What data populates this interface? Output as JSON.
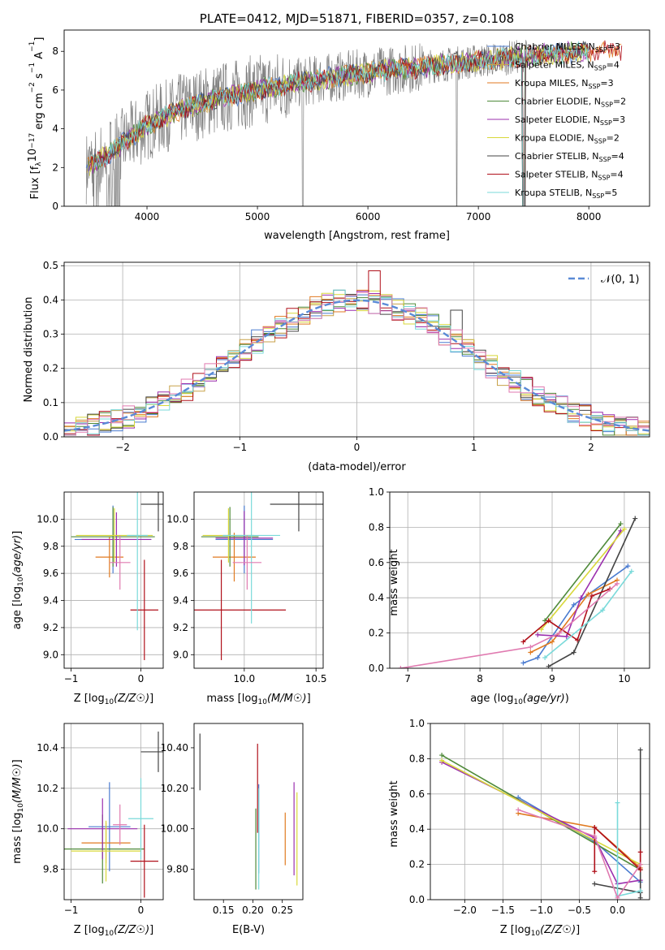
{
  "chart_data": [
    {
      "type": "line",
      "title": "PLATE=0412, MJD=51871, FIBERID=0357, z=0.108",
      "xlabel": "wavelength [Angstrom, rest frame]",
      "ylabel": "Flux [f$_\\lambda$10$^{-17}$ erg cm$^{-2}$ s$^{-1}$ A$^{-1}$]",
      "ylabel_parts": {
        "a": "Flux [f",
        "b": "λ",
        "c": "10",
        "d": "−17",
        "e": " erg cm",
        "f": "−2",
        "g": " s",
        "h": "−1",
        "i": " A",
        "j": "−1",
        "k": "]"
      },
      "xlim": [
        3250,
        8550
      ],
      "ylim": [
        0,
        9.1
      ],
      "xticks": [
        4000,
        5000,
        6000,
        7000,
        8000
      ],
      "yticks": [
        0,
        2,
        4,
        6,
        8
      ],
      "grid": false,
      "legend_position": "right",
      "observed_color": "#808080",
      "continuum_x": [
        3450,
        3600,
        3800,
        4000,
        4300,
        4600,
        5000,
        5500,
        6000,
        6500,
        7000,
        7500,
        8000,
        8300
      ],
      "continuum_y": [
        2.0,
        2.5,
        3.3,
        4.2,
        5.0,
        5.5,
        6.0,
        6.5,
        6.9,
        7.2,
        7.5,
        7.8,
        8.0,
        8.1
      ],
      "series": [
        {
          "label": "Chabrier MILES, N",
          "sub": "SSP",
          "suffix": "=3",
          "color": "#4a7bd0"
        },
        {
          "label": "Salpeter MILES, N",
          "sub": "SSP",
          "suffix": "=4",
          "color": "#c8a24a"
        },
        {
          "label": "Kroupa MILES, N",
          "sub": "SSP",
          "suffix": "=3",
          "color": "#e07a20"
        },
        {
          "label": "Chabrier ELODIE, N",
          "sub": "SSP",
          "suffix": "=2",
          "color": "#4f8a3a"
        },
        {
          "label": "Salpeter ELODIE, N",
          "sub": "SSP",
          "suffix": "=3",
          "color": "#9b2fae"
        },
        {
          "label": "Kroupa ELODIE, N",
          "sub": "SSP",
          "suffix": "=2",
          "color": "#d8d83a"
        },
        {
          "label": "Chabrier STELIB, N",
          "sub": "SSP",
          "suffix": "=4",
          "color": "#444444"
        },
        {
          "label": "Salpeter STELIB, N",
          "sub": "SSP",
          "suffix": "=4",
          "color": "#b0101a"
        },
        {
          "label": "Kroupa STELIB, N",
          "sub": "SSP",
          "suffix": "=5",
          "color": "#7adada"
        }
      ]
    },
    {
      "type": "bar",
      "xlabel": "(data-model)/error",
      "ylabel": "Normed distribution",
      "xlim": [
        -2.5,
        2.5
      ],
      "ylim": [
        0,
        0.51
      ],
      "xticks": [
        -2,
        -1,
        0,
        1,
        2
      ],
      "yticks": [
        0.0,
        0.1,
        0.2,
        0.3,
        0.4,
        0.5
      ],
      "grid": true,
      "legend_label": "𝒩(0, 1)",
      "legend_position": "top-right",
      "gauss_color": "#5a8ad6",
      "bin_width": 0.1,
      "bin_start": -2.5,
      "histogram_colors": [
        "#4a7bd0",
        "#c8a24a",
        "#e07a20",
        "#4f8a3a",
        "#9b2fae",
        "#d8d83a",
        "#444444",
        "#b0101a",
        "#7adada",
        "#e07ab0"
      ]
    },
    {
      "type": "scatter",
      "xlabel": "Z [log10(Z/Z☉)]",
      "ylabel": "age  [log10(age/yr)]",
      "xlim": [
        -1.1,
        0.32
      ],
      "ylim": [
        8.9,
        10.2
      ],
      "xticks": [
        -1,
        0
      ],
      "yticks": [
        9.0,
        9.2,
        9.4,
        9.6,
        9.8,
        10.0
      ],
      "grid": true,
      "points": [
        {
          "x": -0.4,
          "y": 9.85,
          "xerr": 0.55,
          "yerr": 0.25,
          "color": "#4a7bd0"
        },
        {
          "x": -0.45,
          "y": 9.72,
          "xerr": 0.2,
          "yerr": 0.15,
          "color": "#e07a20"
        },
        {
          "x": -0.4,
          "y": 9.87,
          "xerr": 0.6,
          "yerr": 0.22,
          "color": "#4f8a3a"
        },
        {
          "x": -0.35,
          "y": 9.85,
          "xerr": 0.5,
          "yerr": 0.2,
          "color": "#9b2fae"
        },
        {
          "x": -0.38,
          "y": 9.88,
          "xerr": 0.55,
          "yerr": 0.2,
          "color": "#d8d83a"
        },
        {
          "x": 0.25,
          "y": 10.11,
          "xerr": 0.25,
          "yerr": 0.2,
          "color": "#444444"
        },
        {
          "x": 0.05,
          "y": 9.33,
          "xerr": 0.2,
          "yerr": 0.37,
          "color": "#b0101a"
        },
        {
          "x": -0.05,
          "y": 9.88,
          "xerr": 0.15,
          "yerr": 0.7,
          "color": "#7adada"
        },
        {
          "x": -0.3,
          "y": 9.68,
          "xerr": 0.15,
          "yerr": 0.2,
          "color": "#e07ab0"
        }
      ]
    },
    {
      "type": "scatter",
      "xlabel": "mass [log10(M/M☉)]",
      "ylabel": "",
      "xlim": [
        9.65,
        10.55
      ],
      "ylim": [
        8.9,
        10.2
      ],
      "xticks": [
        10.0,
        10.5
      ],
      "yticks": [
        9.0,
        9.2,
        9.4,
        9.6,
        9.8,
        10.0
      ],
      "grid": true,
      "points": [
        {
          "x": 10.0,
          "y": 9.85,
          "xerr": 0.2,
          "yerr": 0.25,
          "color": "#4a7bd0"
        },
        {
          "x": 9.93,
          "y": 9.72,
          "xerr": 0.15,
          "yerr": 0.18,
          "color": "#e07a20"
        },
        {
          "x": 9.9,
          "y": 9.87,
          "xerr": 0.2,
          "yerr": 0.22,
          "color": "#4f8a3a"
        },
        {
          "x": 10.0,
          "y": 9.86,
          "xerr": 0.2,
          "yerr": 0.2,
          "color": "#9b2fae"
        },
        {
          "x": 9.89,
          "y": 9.88,
          "xerr": 0.18,
          "yerr": 0.2,
          "color": "#d8d83a"
        },
        {
          "x": 10.38,
          "y": 10.11,
          "xerr": 0.2,
          "yerr": 0.2,
          "color": "#444444"
        },
        {
          "x": 9.84,
          "y": 9.33,
          "xerr": 0.45,
          "yerr": 0.37,
          "color": "#b0101a"
        },
        {
          "x": 10.05,
          "y": 9.88,
          "xerr": 0.2,
          "yerr": 0.65,
          "color": "#7adada"
        },
        {
          "x": 10.02,
          "y": 9.68,
          "xerr": 0.1,
          "yerr": 0.2,
          "color": "#e07ab0"
        }
      ]
    },
    {
      "type": "line",
      "xlabel": "age  [log10(age/yr)]",
      "ylabel": "mass weight",
      "xlim": [
        6.75,
        10.35
      ],
      "ylim": [
        0,
        1.0
      ],
      "xticks": [
        7,
        8,
        9,
        10
      ],
      "yticks": [
        0.0,
        0.2,
        0.4,
        0.6,
        0.8,
        1.0
      ],
      "grid": true,
      "series": [
        {
          "color": "#4a7bd0",
          "x": [
            8.6,
            8.8,
            9.3,
            10.05
          ],
          "y": [
            0.03,
            0.06,
            0.36,
            0.58
          ]
        },
        {
          "color": "#e07a20",
          "x": [
            8.7,
            9.0,
            9.5,
            9.9
          ],
          "y": [
            0.09,
            0.15,
            0.42,
            0.5
          ]
        },
        {
          "color": "#4f8a3a",
          "x": [
            8.9,
            9.95
          ],
          "y": [
            0.27,
            0.82
          ]
        },
        {
          "color": "#9b2fae",
          "x": [
            8.8,
            9.2,
            9.4,
            9.95
          ],
          "y": [
            0.19,
            0.18,
            0.4,
            0.78
          ]
        },
        {
          "color": "#d8d83a",
          "x": [
            8.85,
            10.0
          ],
          "y": [
            0.22,
            0.79
          ]
        },
        {
          "color": "#444444",
          "x": [
            8.95,
            9.3,
            10.15
          ],
          "y": [
            0.01,
            0.09,
            0.85
          ]
        },
        {
          "color": "#b0101a",
          "x": [
            8.6,
            8.95,
            9.35,
            9.55,
            9.8
          ],
          "y": [
            0.15,
            0.27,
            0.16,
            0.41,
            0.45
          ]
        },
        {
          "color": "#7adada",
          "x": [
            8.9,
            9.7,
            10.1
          ],
          "y": [
            0.06,
            0.33,
            0.55
          ]
        },
        {
          "color": "#e07ab0",
          "x": [
            6.9,
            8.7,
            9.1,
            9.9
          ],
          "y": [
            0.0,
            0.12,
            0.2,
            0.48
          ]
        }
      ]
    },
    {
      "type": "scatter",
      "xlabel": "Z [log10(Z/Z☉)]",
      "ylabel": "mass [log10(M/M☉)]",
      "xlim": [
        -1.1,
        0.32
      ],
      "ylim": [
        9.65,
        10.52
      ],
      "xticks": [
        -1,
        0
      ],
      "yticks": [
        9.8,
        10.0,
        10.2,
        10.4
      ],
      "grid": true,
      "points": [
        {
          "x": -0.45,
          "y": 10.01,
          "xerr": 0.3,
          "yerr": 0.22,
          "color": "#4a7bd0"
        },
        {
          "x": -0.5,
          "y": 9.93,
          "xerr": 0.35,
          "yerr": 0.1,
          "color": "#e07a20"
        },
        {
          "x": -0.55,
          "y": 9.9,
          "xerr": 0.6,
          "yerr": 0.17,
          "color": "#4f8a3a"
        },
        {
          "x": -0.55,
          "y": 10.0,
          "xerr": 0.5,
          "yerr": 0.15,
          "color": "#9b2fae"
        },
        {
          "x": -0.5,
          "y": 9.89,
          "xerr": 0.5,
          "yerr": 0.15,
          "color": "#d8d83a"
        },
        {
          "x": 0.25,
          "y": 10.38,
          "xerr": 0.25,
          "yerr": 0.1,
          "color": "#444444"
        },
        {
          "x": 0.05,
          "y": 9.84,
          "xerr": 0.2,
          "yerr": 0.18,
          "color": "#b0101a"
        },
        {
          "x": 0.0,
          "y": 10.05,
          "xerr": 0.18,
          "yerr": 0.2,
          "color": "#7adada"
        },
        {
          "x": -0.3,
          "y": 10.02,
          "xerr": 0.1,
          "yerr": 0.1,
          "color": "#e07ab0"
        }
      ]
    },
    {
      "type": "scatter",
      "xlabel": "E(B-V)",
      "ylabel": "",
      "xlim": [
        0.1,
        0.285
      ],
      "ylim": [
        9.65,
        10.52
      ],
      "xticks": [
        0.15,
        0.2,
        0.25
      ],
      "yticks": [
        9.8,
        10.0,
        10.2,
        10.4
      ],
      "grid": false,
      "points": [
        {
          "x": 0.21,
          "y": 10.0,
          "yerr": 0.22,
          "color": "#4a7bd0"
        },
        {
          "x": 0.255,
          "y": 9.95,
          "yerr": 0.13,
          "color": "#e07a20"
        },
        {
          "x": 0.205,
          "y": 9.9,
          "yerr": 0.2,
          "color": "#4f8a3a"
        },
        {
          "x": 0.27,
          "y": 10.0,
          "yerr": 0.23,
          "color": "#9b2fae"
        },
        {
          "x": 0.275,
          "y": 9.95,
          "yerr": 0.23,
          "color": "#d8d83a"
        },
        {
          "x": 0.11,
          "y": 10.33,
          "yerr": 0.14,
          "color": "#444444"
        },
        {
          "x": 0.208,
          "y": 10.2,
          "yerr": 0.22,
          "color": "#b0101a"
        },
        {
          "x": 0.21,
          "y": 9.95,
          "yerr": 0.25,
          "color": "#7adada"
        }
      ]
    },
    {
      "type": "line",
      "xlabel": "Z [log10(Z/Z☉)]",
      "ylabel": "mass weight",
      "xlim": [
        -2.45,
        0.42
      ],
      "ylim": [
        0,
        1.0
      ],
      "xticks": [
        -2.0,
        -1.5,
        -1.0,
        -0.5,
        0.0
      ],
      "yticks": [
        0.0,
        0.2,
        0.4,
        0.6,
        0.8,
        1.0
      ],
      "grid": true,
      "series": [
        {
          "color": "#4a7bd0",
          "x": [
            -1.3,
            -0.3,
            0.3
          ],
          "y": [
            0.58,
            0.33,
            0.1
          ]
        },
        {
          "color": "#e07a20",
          "x": [
            -1.3,
            -0.3,
            0.3
          ],
          "y": [
            0.49,
            0.41,
            0.18
          ]
        },
        {
          "color": "#4f8a3a",
          "x": [
            -2.3,
            0.3
          ],
          "y": [
            0.82,
            0.17
          ]
        },
        {
          "color": "#9b2fae",
          "x": [
            -2.3,
            -0.3,
            0.0,
            0.3
          ],
          "y": [
            0.78,
            0.35,
            0.09,
            0.11
          ]
        },
        {
          "color": "#d8d83a",
          "x": [
            -2.3,
            0.3
          ],
          "y": [
            0.79,
            0.2
          ]
        },
        {
          "color": "#444444",
          "x": [
            -0.3,
            0.3,
            0.3,
            0.3
          ],
          "y": [
            0.09,
            0.04,
            0.85,
            0.01
          ]
        },
        {
          "color": "#b0101a",
          "x": [
            -0.3,
            -0.3,
            0.3,
            0.3
          ],
          "y": [
            0.16,
            0.41,
            0.17,
            0.27
          ]
        },
        {
          "color": "#7adada",
          "x": [
            0.0,
            0.0,
            0.3
          ],
          "y": [
            0.55,
            0.02,
            0.05
          ]
        },
        {
          "color": "#e07ab0",
          "x": [
            -1.3,
            -0.3,
            0.0,
            0.3
          ],
          "y": [
            0.51,
            0.36,
            0.01,
            0.2
          ]
        }
      ]
    }
  ]
}
